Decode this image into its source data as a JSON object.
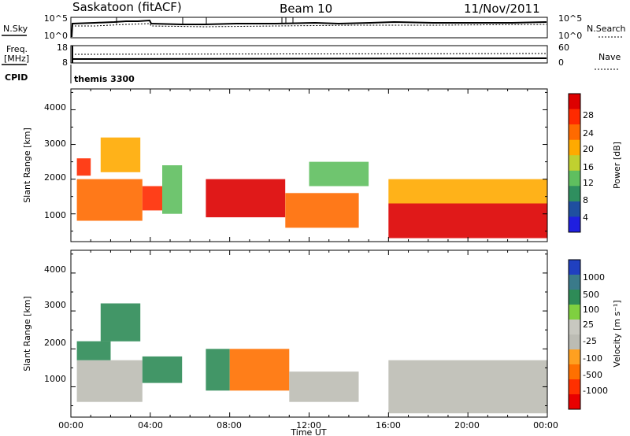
{
  "header": {
    "station": "Saskatoon (fitACF)",
    "beam": "Beam 10",
    "date": "11/Nov/2011"
  },
  "top_panels": {
    "nsky_label": "N.Sky",
    "nsky_ticks": [
      "10^5",
      "10^0"
    ],
    "nsearch_label": "N.Search",
    "nsearch_ticks": [
      "10^5",
      "10^0"
    ],
    "freq_label_line1": "Freq.",
    "freq_label_line2": "[MHz]",
    "freq_ticks": [
      "18",
      "8"
    ],
    "nave_label": "Nave",
    "nave_ticks": [
      "60",
      "0"
    ],
    "cpid_label": "CPID",
    "cpid_value": "themis 3300"
  },
  "colors": {
    "power_scale": [
      "#1f1fe0",
      "#1f4fa0",
      "#2f8f5f",
      "#5fbf5f",
      "#c0d030",
      "#ffaa00",
      "#ff6a00",
      "#ff2a00",
      "#dd0000"
    ],
    "velocity_scale": [
      "#2040c0",
      "#3a7a8a",
      "#2e8b57",
      "#7fd040",
      "#c8c8c0",
      "#bcbcb4",
      "#ffa020",
      "#ff7000",
      "#ff3000",
      "#e80000"
    ]
  },
  "chart_data": [
    {
      "type": "heatmap",
      "quantity": "Power",
      "ylabel": "Slant Range [km]",
      "xlabel": "Time UT",
      "x_ticks": [
        "00:00",
        "04:00",
        "08:00",
        "12:00",
        "16:00",
        "20:00",
        "00:00"
      ],
      "y_ticks": [
        "1000",
        "2000",
        "3000",
        "4000"
      ],
      "ylim": [
        200,
        4600
      ],
      "colorbar_label": "Power [dB]",
      "colorbar_ticks": [
        "4",
        "8",
        "12",
        "16",
        "20",
        "24",
        "28"
      ],
      "clim": [
        0,
        30
      ],
      "regions": [
        {
          "t0": 0.3,
          "t1": 3.6,
          "r0": 800,
          "r1": 2000,
          "value": 21
        },
        {
          "t0": 0.3,
          "t1": 1.0,
          "r0": 2100,
          "r1": 2600,
          "value": 26
        },
        {
          "t0": 1.5,
          "t1": 3.5,
          "r0": 2200,
          "r1": 3200,
          "value": 18
        },
        {
          "t0": 3.6,
          "t1": 4.6,
          "r0": 1100,
          "r1": 1800,
          "value": 24
        },
        {
          "t0": 4.6,
          "t1": 5.6,
          "r0": 1000,
          "r1": 2400,
          "value": 12
        },
        {
          "t0": 6.8,
          "t1": 10.8,
          "r0": 900,
          "r1": 2000,
          "value": 27
        },
        {
          "t0": 10.8,
          "t1": 14.5,
          "r0": 600,
          "r1": 1600,
          "value": 22
        },
        {
          "t0": 12.0,
          "t1": 15.0,
          "r0": 1800,
          "r1": 2500,
          "value": 10
        },
        {
          "t0": 16.0,
          "t1": 24.0,
          "r0": 300,
          "r1": 1300,
          "value": 28
        },
        {
          "t0": 16.0,
          "t1": 24.0,
          "r0": 1300,
          "r1": 2000,
          "value": 17
        }
      ]
    },
    {
      "type": "heatmap",
      "quantity": "Velocity",
      "ylabel": "Slant Range [km]",
      "xlabel": "Time UT",
      "x_ticks": [
        "00:00",
        "04:00",
        "08:00",
        "12:00",
        "16:00",
        "20:00",
        "00:00"
      ],
      "y_ticks": [
        "1000",
        "2000",
        "3000",
        "4000"
      ],
      "ylim": [
        200,
        4600
      ],
      "colorbar_label": "Velocity [m s⁻¹]",
      "colorbar_ticks": [
        "1000",
        "500",
        "100",
        "25",
        "-25",
        "-100",
        "-500",
        "-1000"
      ],
      "regions": [
        {
          "t0": 0.3,
          "t1": 3.6,
          "r0": 600,
          "r1": 1700,
          "value": 0
        },
        {
          "t0": 0.3,
          "t1": 2.0,
          "r0": 1700,
          "r1": 2200,
          "value": 150
        },
        {
          "t0": 1.5,
          "t1": 3.5,
          "r0": 2200,
          "r1": 3200,
          "value": 300
        },
        {
          "t0": 3.6,
          "t1": 5.6,
          "r0": 1100,
          "r1": 1800,
          "value": 300
        },
        {
          "t0": 6.8,
          "t1": 8.0,
          "r0": 900,
          "r1": 2000,
          "value": 300
        },
        {
          "t0": 8.0,
          "t1": 11.0,
          "r0": 900,
          "r1": 2000,
          "value": -150
        },
        {
          "t0": 11.0,
          "t1": 14.5,
          "r0": 600,
          "r1": 1400,
          "value": 0
        },
        {
          "t0": 16.0,
          "t1": 24.0,
          "r0": 300,
          "r1": 1700,
          "value": 0
        }
      ]
    }
  ]
}
